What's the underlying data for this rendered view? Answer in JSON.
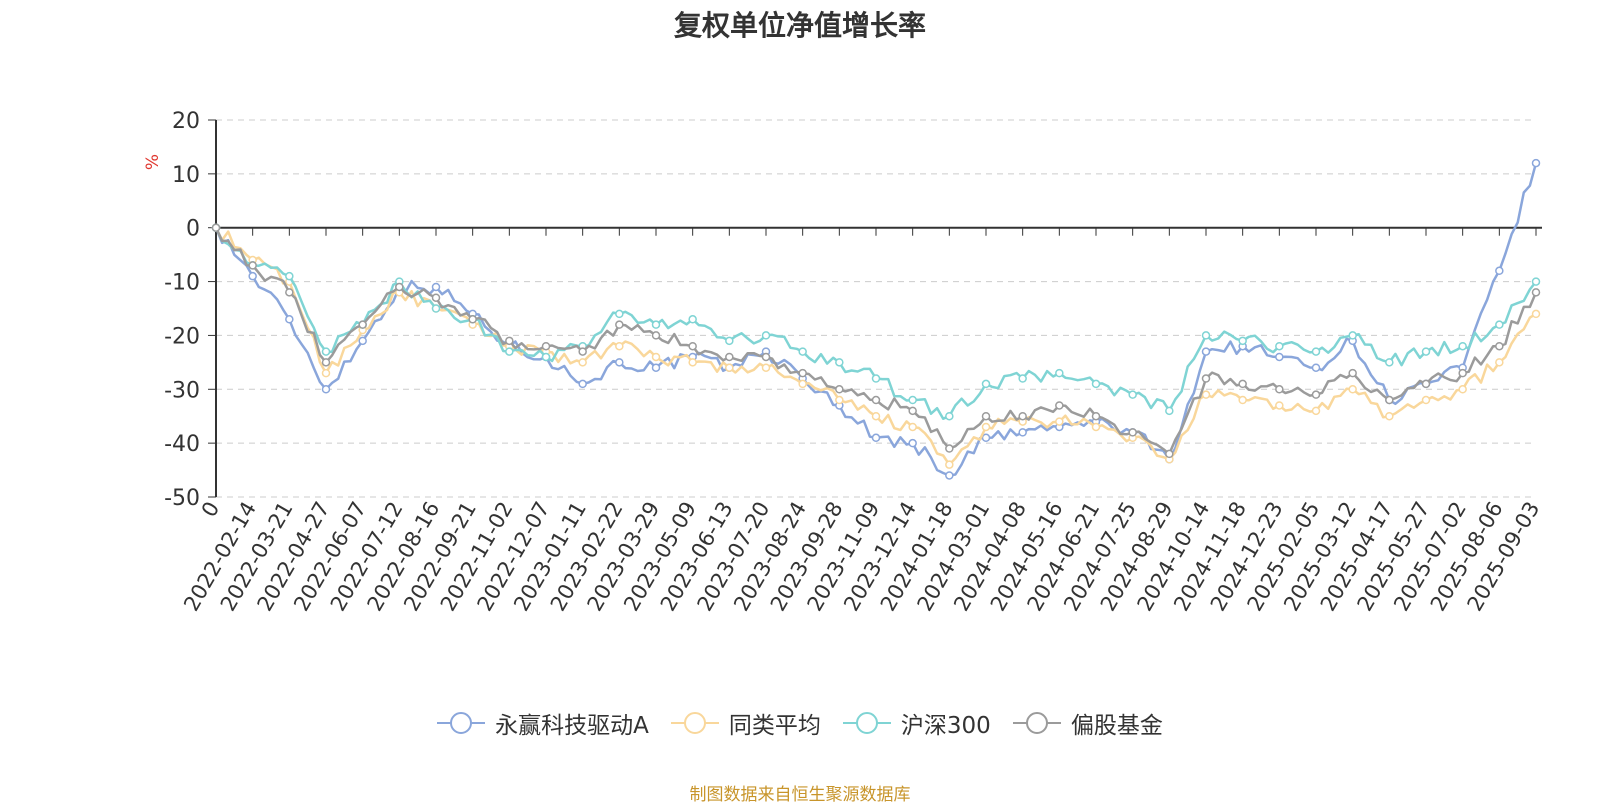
{
  "chart_data": {
    "type": "line",
    "title": "复权单位净值增长率",
    "ylabel": "%",
    "ylim": [
      -50,
      20
    ],
    "yticks": [
      20,
      10,
      0,
      -10,
      -20,
      -30,
      -40,
      -50
    ],
    "grid": true,
    "legend_position": "bottom",
    "categories": [
      "0",
      "2022-02-14",
      "2022-03-21",
      "2022-04-27",
      "2022-06-07",
      "2022-07-12",
      "2022-08-16",
      "2022-09-21",
      "2022-11-02",
      "2022-12-07",
      "2023-01-11",
      "2023-02-22",
      "2023-03-29",
      "2023-05-09",
      "2023-06-13",
      "2023-07-20",
      "2023-08-24",
      "2023-09-28",
      "2023-11-09",
      "2023-12-14",
      "2024-01-18",
      "2024-03-01",
      "2024-04-08",
      "2024-05-16",
      "2024-06-21",
      "2024-07-25",
      "2024-08-29",
      "2024-10-14",
      "2024-11-18",
      "2024-12-23",
      "2025-02-05",
      "2025-03-12",
      "2025-04-17",
      "2025-05-27",
      "2025-07-02",
      "2025-08-06",
      "2025-09-03"
    ],
    "series": [
      {
        "name": "永赢科技驱动A",
        "color": "#8aa6db",
        "values": [
          0,
          -9,
          -17,
          -30,
          -21,
          -11,
          -11,
          -16,
          -22,
          -24,
          -29,
          -25,
          -26,
          -24,
          -26,
          -23,
          -28,
          -33,
          -39,
          -40,
          -46,
          -39,
          -38,
          -37,
          -36,
          -38,
          -43,
          -23,
          -22,
          -24,
          -26,
          -21,
          -32,
          -29,
          -26,
          -8,
          12
        ]
      },
      {
        "name": "同类平均",
        "color": "#f9d79b",
        "values": [
          0,
          -6,
          -10,
          -27,
          -19,
          -12,
          -15,
          -18,
          -22,
          -23,
          -25,
          -22,
          -24,
          -25,
          -26,
          -26,
          -29,
          -32,
          -35,
          -37,
          -44,
          -37,
          -36,
          -36,
          -37,
          -39,
          -43,
          -31,
          -32,
          -33,
          -34,
          -30,
          -35,
          -32,
          -30,
          -25,
          -16
        ]
      },
      {
        "name": "沪深300",
        "color": "#7fd4d4",
        "values": [
          0,
          -7,
          -9,
          -23,
          -18,
          -10,
          -15,
          -17,
          -23,
          -24,
          -22,
          -16,
          -18,
          -17,
          -21,
          -20,
          -23,
          -25,
          -28,
          -32,
          -35,
          -29,
          -28,
          -27,
          -29,
          -31,
          -34,
          -20,
          -21,
          -22,
          -23,
          -20,
          -25,
          -23,
          -22,
          -18,
          -10
        ]
      },
      {
        "name": "偏股基金",
        "color": "#9b9b9b",
        "values": [
          0,
          -7,
          -12,
          -25,
          -18,
          -11,
          -13,
          -17,
          -21,
          -22,
          -23,
          -18,
          -20,
          -22,
          -24,
          -24,
          -27,
          -30,
          -32,
          -34,
          -41,
          -35,
          -35,
          -33,
          -35,
          -38,
          -42,
          -28,
          -29,
          -30,
          -31,
          -27,
          -32,
          -29,
          -27,
          -22,
          -12
        ]
      }
    ]
  },
  "source_note": "制图数据来自恒生聚源数据库"
}
